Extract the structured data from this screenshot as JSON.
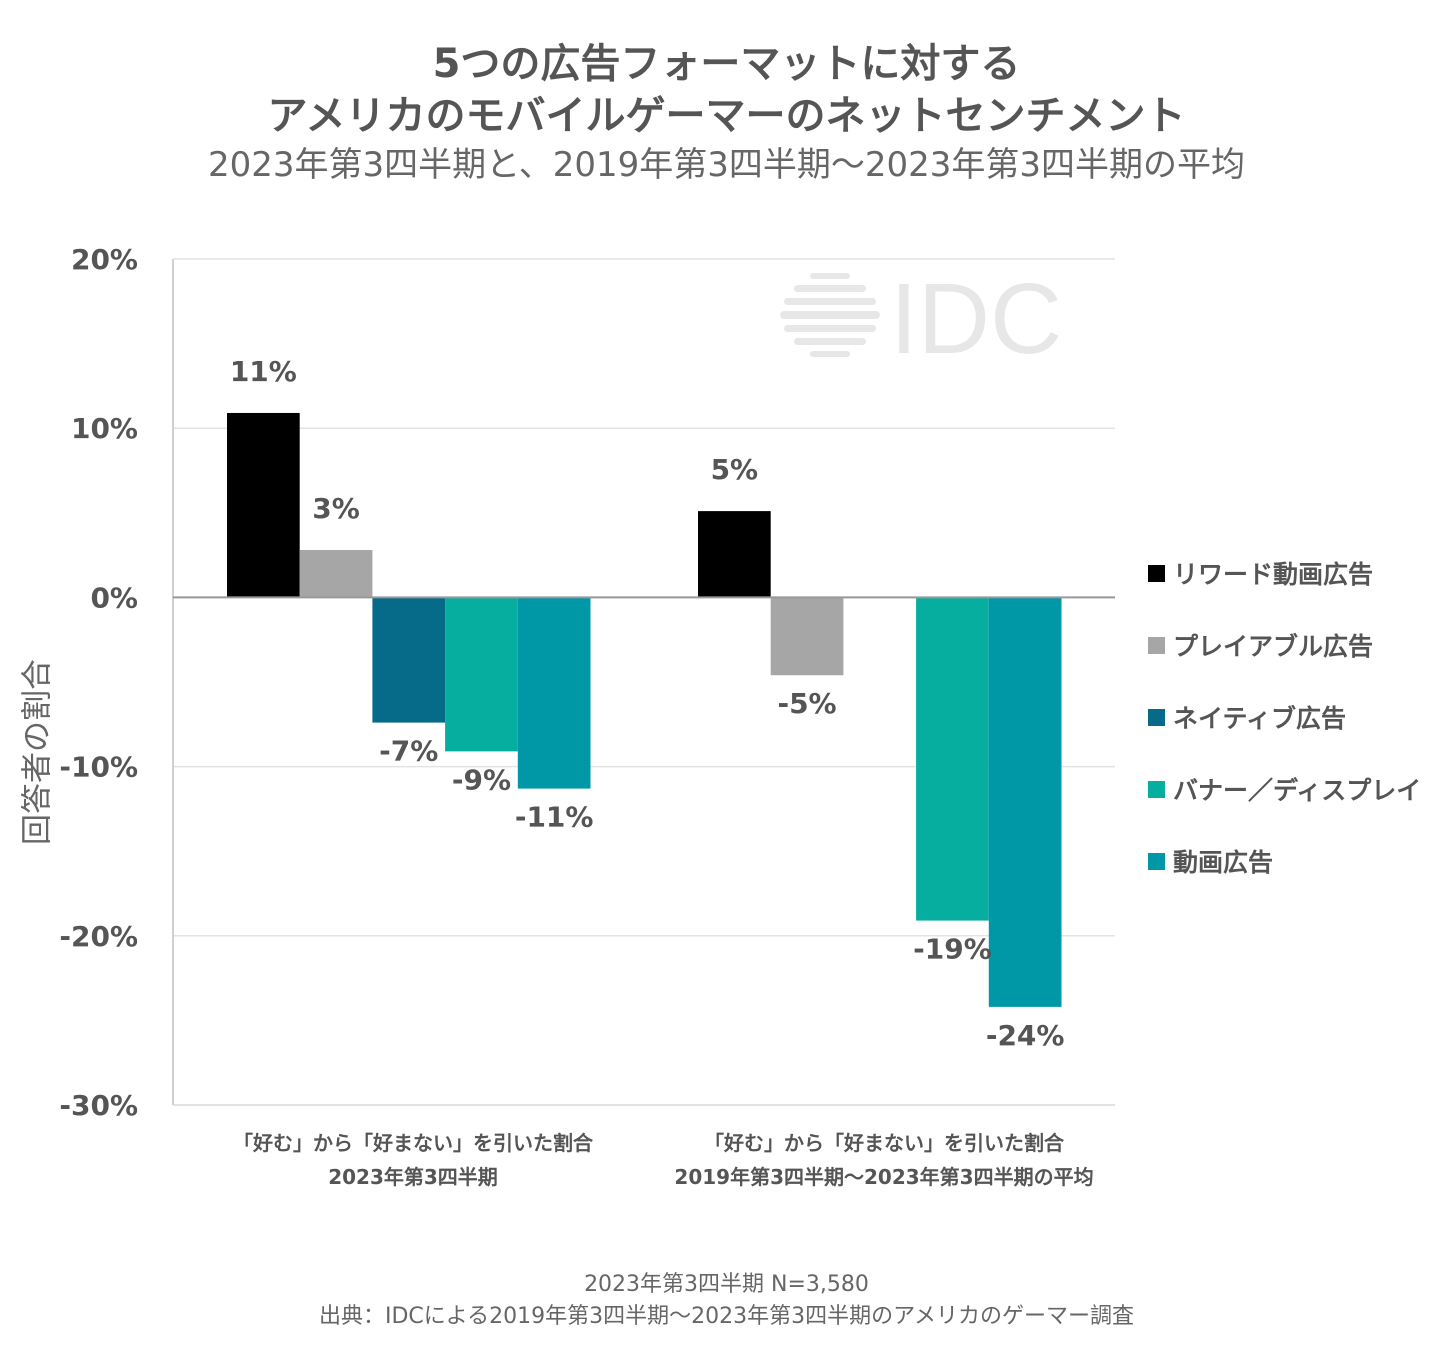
{
  "title_line1": "5つの広告フォーマットに対する",
  "title_line2": "アメリカのモバイルゲーマーのネットセンチメント",
  "subtitle": "2023年第3四半期と、2019年第3四半期～2023年第3四半期の平均",
  "watermark": "IDC",
  "footer_note": "2023年第3四半期 N=3,580",
  "footer_source": "出典：IDCによる2019年第3四半期～2023年第3四半期のアメリカのゲーマー調査",
  "chart_data": {
    "type": "bar",
    "ylabel": "回答者の割合",
    "ylim": [
      -30,
      20
    ],
    "yticks": [
      20,
      10,
      0,
      -10,
      -20,
      -30
    ],
    "ytick_labels": [
      "20%",
      "10%",
      "0%",
      "-10%",
      "-20%",
      "-30%"
    ],
    "grid": true,
    "legend_position": "right",
    "categories": [
      {
        "line1": "「好む」から「好まない」を引いた割合",
        "line2": "2023年第3四半期"
      },
      {
        "line1": "「好む」から「好まない」を引いた割合",
        "line2": "2019年第3四半期～2023年第3四半期の平均"
      }
    ],
    "series": [
      {
        "name": "リワード動画広告",
        "color": "#000000",
        "values": [
          10.9,
          5.1
        ],
        "labels": [
          "11%",
          "5%"
        ]
      },
      {
        "name": "プレイアブル広告",
        "color": "#a6a6a6",
        "values": [
          2.8,
          -4.6
        ],
        "labels": [
          "3%",
          "-5%"
        ]
      },
      {
        "name": "ネイティブ広告",
        "color": "#066a89",
        "values": [
          -7.4,
          null
        ],
        "labels": [
          "-7%",
          null
        ]
      },
      {
        "name": "バナー／ディスプレイ",
        "color": "#05ae9e",
        "values": [
          -9.1,
          -19.1
        ],
        "labels": [
          "-9%",
          "-19%"
        ]
      },
      {
        "name": "動画広告",
        "color": "#0097a7",
        "values": [
          -11.3,
          -24.2
        ],
        "labels": [
          "-11%",
          "-24%"
        ]
      }
    ]
  }
}
